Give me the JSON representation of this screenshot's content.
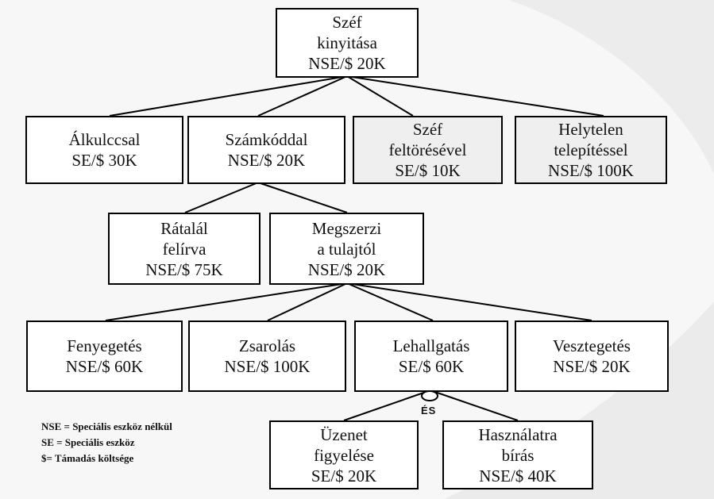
{
  "nodes": {
    "root": {
      "lines": [
        "Széf",
        "kinyitása",
        "NSE/$ 20K"
      ]
    },
    "alkulccsal": {
      "lines": [
        "Álkulccsal",
        "SE/$ 30K"
      ]
    },
    "szamkoddal": {
      "lines": [
        "Számkóddal",
        "NSE/$ 20K"
      ]
    },
    "szef_feltores": {
      "lines": [
        "Széf",
        "feltörésével",
        "SE/$ 10K"
      ]
    },
    "helytelen": {
      "lines": [
        "Helytelen",
        "telepítéssel",
        "NSE/$ 100K"
      ]
    },
    "ratalal": {
      "lines": [
        "Rátalál",
        "felírva",
        "NSE/$ 75K"
      ]
    },
    "megszerzi": {
      "lines": [
        "Megszerzi",
        "a tulajtól",
        "NSE/$ 20K"
      ]
    },
    "fenyegetes": {
      "lines": [
        "Fenyegetés",
        "NSE/$ 60K"
      ]
    },
    "zsarolas": {
      "lines": [
        "Zsarolás",
        "NSE/$ 100K"
      ]
    },
    "lehallgatas": {
      "lines": [
        "Lehallgatás",
        "SE/$ 60K"
      ]
    },
    "vesztegetes": {
      "lines": [
        "Vesztegetés",
        "NSE/$ 20K"
      ]
    },
    "uzenet": {
      "lines": [
        "Üzenet",
        "figyelése",
        "SE/$ 20K"
      ]
    },
    "hasznalatra": {
      "lines": [
        "Használatra",
        "bírás",
        "NSE/$ 40K"
      ]
    }
  },
  "and_label": "ÉS",
  "legend": [
    "NSE = Speciális eszköz nélkül",
    "SE = Speciális eszköz",
    "$= Támadás költsége"
  ],
  "colors": {
    "border": "#000000",
    "box": "#ffffff",
    "shaded_box": "#efefef",
    "background": "#f7f7f7"
  }
}
